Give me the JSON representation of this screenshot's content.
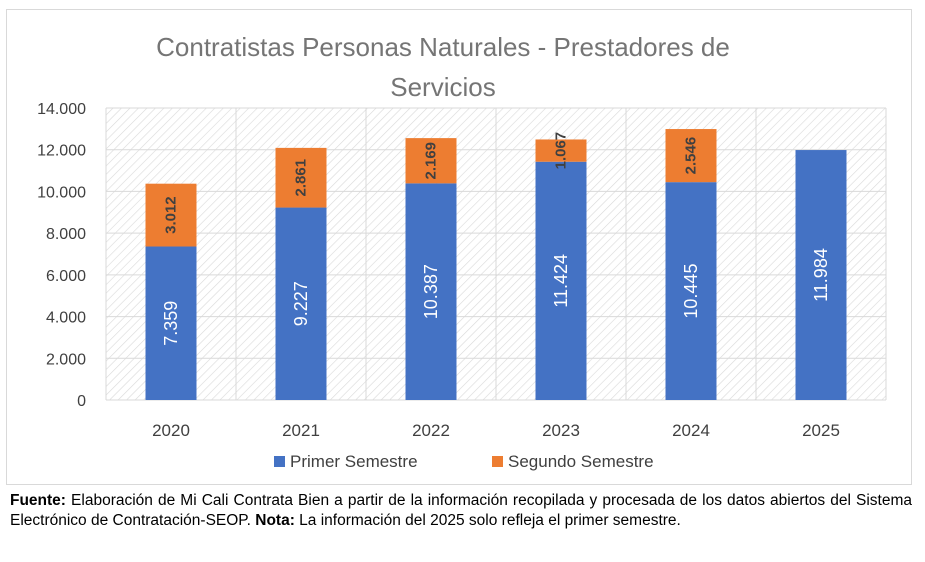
{
  "chart_data": {
    "type": "bar",
    "stacked": true,
    "title_line1": "Contratistas Personas Naturales - Prestadores de",
    "title_line2": "Servicios",
    "categories": [
      "2020",
      "2021",
      "2022",
      "2023",
      "2024",
      "2025"
    ],
    "series": [
      {
        "name": "Primer Semestre",
        "color": "#4472C4",
        "values": [
          7359,
          9227,
          10387,
          11424,
          10445,
          11984
        ],
        "labels": [
          "7.359",
          "9.227",
          "10.387",
          "11.424",
          "10.445",
          "11.984"
        ]
      },
      {
        "name": "Segundo Semestre",
        "color": "#ED7D31",
        "values": [
          3012,
          2861,
          2169,
          1067,
          2546,
          null
        ],
        "labels": [
          "3.012",
          "2.861",
          "2.169",
          "1.067",
          "2.546",
          null
        ]
      }
    ],
    "ylim": [
      0,
      14000
    ],
    "yticks": [
      0,
      2000,
      4000,
      6000,
      8000,
      10000,
      12000,
      14000
    ],
    "ytick_labels": [
      "0",
      "2.000",
      "4.000",
      "6.000",
      "8.000",
      "10.000",
      "12.000",
      "14.000"
    ],
    "grid": true,
    "legend_position": "bottom",
    "xlabel": "",
    "ylabel": ""
  },
  "caption": {
    "fuente_label": "Fuente:",
    "fuente_text": " Elaboración de Mi Cali Contrata Bien a partir de la información recopilada y procesada de los datos abiertos del Sistema Electrónico de Contratación-SEOP. ",
    "nota_label": "Nota:",
    "nota_text": " La información del 2025 solo refleja el primer semestre."
  }
}
